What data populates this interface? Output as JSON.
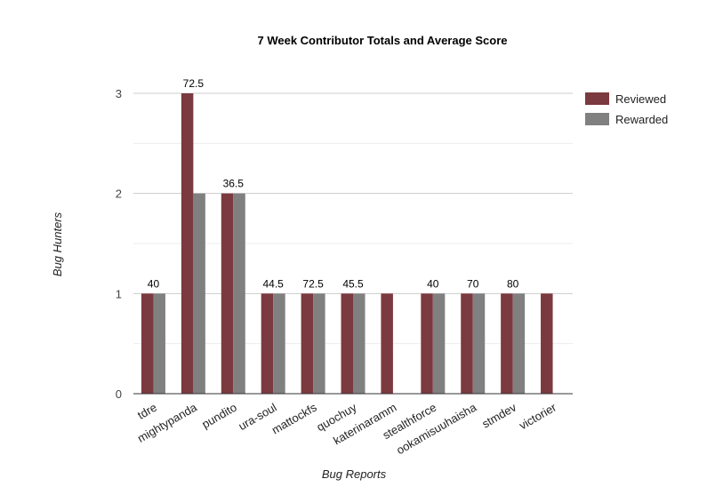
{
  "chart_data": {
    "type": "bar",
    "title": "7 Week Contributor Totals and Average Score",
    "xlabel": "Bug Reports",
    "ylabel": "Bug Hunters",
    "ylim": [
      0,
      3
    ],
    "yticks": [
      0,
      1,
      2,
      3
    ],
    "grid": true,
    "legend_position": "right",
    "categories": [
      "tdre",
      "mightypanda",
      "pundito",
      "ura-soul",
      "mattockfs",
      "quochuy",
      "katerinaramm",
      "stealthforce",
      "ookamisuuhaisha",
      "stmdev",
      "victorier"
    ],
    "series": [
      {
        "name": "Reviewed",
        "color": "#7b3a3f",
        "values": [
          1,
          3,
          2,
          1,
          1,
          1,
          1,
          1,
          1,
          1,
          1
        ]
      },
      {
        "name": "Rewarded",
        "color": "#808080",
        "values": [
          1,
          2,
          2,
          1,
          1,
          1,
          0,
          1,
          1,
          1,
          0
        ]
      }
    ],
    "data_labels": [
      "40",
      "72.5",
      "36.5",
      "44.5",
      "72.5",
      "45.5",
      "",
      "40",
      "70",
      "80",
      ""
    ]
  }
}
